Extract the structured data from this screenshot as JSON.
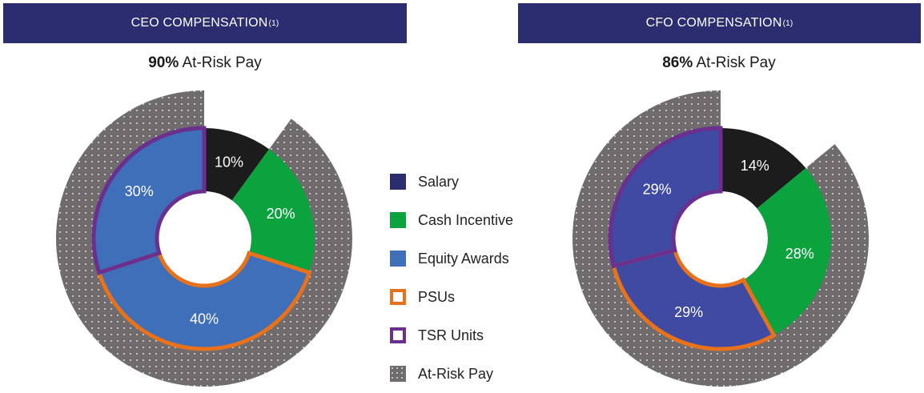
{
  "colors": {
    "salary": "#1c1c1c",
    "cash_incentive": "#0aa33e",
    "equity_ceo": "#3e6fb8",
    "equity_cfo": "#3f4aa3",
    "psus": "#e8711b",
    "tsr_units": "#6b2f8f",
    "at_risk": "#706b6c",
    "header": "#2b2d70",
    "legend_salary": "#2b2d70",
    "legend_equity": "#3e6fb8"
  },
  "ceo": {
    "header": "CEO COMPENSATION",
    "header_sup": "(1)",
    "subtitle_bold": "90%",
    "subtitle_rest": " At-Risk Pay"
  },
  "cfo": {
    "header": "CFO COMPENSATION",
    "header_sup": "(1)",
    "subtitle_bold": "86%",
    "subtitle_rest": " At-Risk Pay"
  },
  "legend": [
    {
      "label": "Salary",
      "icon": "filled-square",
      "color": "#2b2d70"
    },
    {
      "label": "Cash Incentive",
      "icon": "filled-square",
      "color": "#0aa33e"
    },
    {
      "label": "Equity Awards",
      "icon": "filled-square",
      "color": "#3e6fb8"
    },
    {
      "label": "PSUs",
      "icon": "outline-square",
      "color": "#e8711b"
    },
    {
      "label": "TSR Units",
      "icon": "outline-square",
      "color": "#6b2f8f"
    },
    {
      "label": "At-Risk Pay",
      "icon": "dotted-square",
      "color": "#706b6c"
    }
  ],
  "chart_data": [
    {
      "type": "pie",
      "title": "CEO COMPENSATION",
      "subtitle": "90% At-Risk Pay",
      "slices": [
        {
          "name": "Salary",
          "value": 10,
          "label": "10%"
        },
        {
          "name": "Cash Incentive",
          "value": 20,
          "label": "20%"
        },
        {
          "name": "Equity Awards (PSUs)",
          "value": 40,
          "label": "40%"
        },
        {
          "name": "Equity Awards (TSR Units)",
          "value": 30,
          "label": "30%"
        }
      ],
      "at_risk_percent": 90
    },
    {
      "type": "pie",
      "title": "CFO COMPENSATION",
      "subtitle": "86% At-Risk Pay",
      "slices": [
        {
          "name": "Salary",
          "value": 14,
          "label": "14%"
        },
        {
          "name": "Cash Incentive",
          "value": 28,
          "label": "28%"
        },
        {
          "name": "Equity Awards (PSUs)",
          "value": 29,
          "label": "29%"
        },
        {
          "name": "Equity Awards (TSR Units)",
          "value": 29,
          "label": "29%"
        }
      ],
      "at_risk_percent": 86
    }
  ]
}
